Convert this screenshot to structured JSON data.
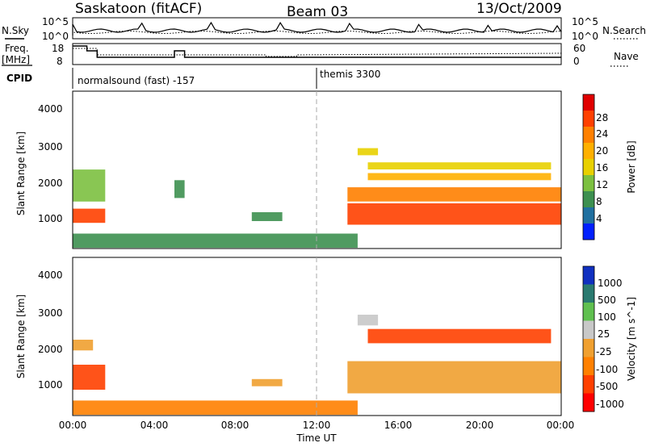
{
  "header": {
    "station": "Saskatoon (fitACF)",
    "beam": "Beam 03",
    "date": "13/Oct/2009"
  },
  "noise_panel": {
    "left_label": "N.Sky",
    "right_label": "N.Search",
    "left_ticks": [
      "10^5",
      "10^0"
    ],
    "right_ticks": [
      "10^5",
      "10^0"
    ]
  },
  "freq_panel": {
    "left_label_line1": "Freq.",
    "left_label_line2": "[MHz]",
    "right_label": "Nave",
    "left_ticks": [
      "18",
      "8"
    ],
    "right_ticks": [
      "60",
      "0"
    ]
  },
  "cpid": {
    "label": "CPID",
    "segments": [
      {
        "text": "normalsound (fast) -157"
      },
      {
        "text": "themis 3300"
      }
    ]
  },
  "power_panel": {
    "ylabel": "Slant Range [km]",
    "yticks": [
      "4000",
      "3000",
      "2000",
      "1000"
    ],
    "colorbar_label": "Power [dB]",
    "colorbar_ticks": [
      "28",
      "24",
      "20",
      "16",
      "12",
      "8",
      "4"
    ],
    "colors": [
      "#e00000",
      "#ff4000",
      "#ff8000",
      "#ffb000",
      "#e8d000",
      "#7cc040",
      "#3d9050",
      "#2070a0",
      "#0020ff"
    ]
  },
  "velocity_panel": {
    "ylabel": "Slant Range [km]",
    "yticks": [
      "4000",
      "3000",
      "2000",
      "1000"
    ],
    "colorbar_label": "Velocity [m s^-1]",
    "colorbar_ticks": [
      "1000",
      "500",
      "100",
      "25",
      "-25",
      "-100",
      "-500",
      "-1000"
    ],
    "colors": [
      "#1030c0",
      "#2a7a70",
      "#60c050",
      "#c8c8c8",
      "#f0a030",
      "#ff8000",
      "#ff4000",
      "#ff0000"
    ]
  },
  "xaxis": {
    "label": "Time UT",
    "ticks": [
      "00:00",
      "04:00",
      "08:00",
      "12:00",
      "16:00",
      "20:00",
      "00:00"
    ]
  },
  "chart_data": [
    {
      "type": "heatmap",
      "title": "Power",
      "xlabel": "Time UT",
      "ylabel": "Slant Range [km]",
      "xlim": [
        0,
        24
      ],
      "ylim": [
        180,
        4600
      ],
      "colorbar": {
        "label": "Power [dB]",
        "range": [
          0,
          30
        ]
      },
      "regions": [
        {
          "t": [
            0.0,
            1.6
          ],
          "r": [
            900,
            1300
          ],
          "value": 28
        },
        {
          "t": [
            0.0,
            1.6
          ],
          "r": [
            1500,
            2400
          ],
          "value": 12
        },
        {
          "t": [
            5.0,
            5.5
          ],
          "r": [
            1600,
            2100
          ],
          "value": 8
        },
        {
          "t": [
            8.8,
            10.3
          ],
          "r": [
            950,
            1200
          ],
          "value": 8
        },
        {
          "t": [
            0.0,
            14.0
          ],
          "r": [
            200,
            600
          ],
          "value": 6
        },
        {
          "t": [
            13.5,
            24.0
          ],
          "r": [
            850,
            1450
          ],
          "value": 26
        },
        {
          "t": [
            13.5,
            24.0
          ],
          "r": [
            1500,
            1900
          ],
          "value": 22
        },
        {
          "t": [
            14.5,
            23.5
          ],
          "r": [
            2100,
            2300
          ],
          "value": 18
        },
        {
          "t": [
            14.5,
            23.5
          ],
          "r": [
            2400,
            2600
          ],
          "value": 14
        },
        {
          "t": [
            14.0,
            15.0
          ],
          "r": [
            2800,
            3000
          ],
          "value": 16
        }
      ]
    },
    {
      "type": "heatmap",
      "title": "Velocity",
      "xlabel": "Time UT",
      "ylabel": "Slant Range [km]",
      "xlim": [
        0,
        24
      ],
      "ylim": [
        180,
        4600
      ],
      "colorbar": {
        "label": "Velocity [m s^-1]",
        "range": [
          -1000,
          1000
        ]
      },
      "regions": [
        {
          "t": [
            0.0,
            1.6
          ],
          "r": [
            900,
            1600
          ],
          "value": -150
        },
        {
          "t": [
            0.0,
            1.0
          ],
          "r": [
            2000,
            2300
          ],
          "value": 0
        },
        {
          "t": [
            8.8,
            10.3
          ],
          "r": [
            1000,
            1200
          ],
          "value": 0
        },
        {
          "t": [
            0.0,
            14.0
          ],
          "r": [
            200,
            600
          ],
          "value": -50
        },
        {
          "t": [
            13.5,
            24.0
          ],
          "r": [
            800,
            1700
          ],
          "value": 0
        },
        {
          "t": [
            14.5,
            23.5
          ],
          "r": [
            2200,
            2600
          ],
          "value": -300
        },
        {
          "t": [
            14.0,
            15.0
          ],
          "r": [
            2700,
            3000
          ],
          "value": 50
        }
      ]
    }
  ]
}
